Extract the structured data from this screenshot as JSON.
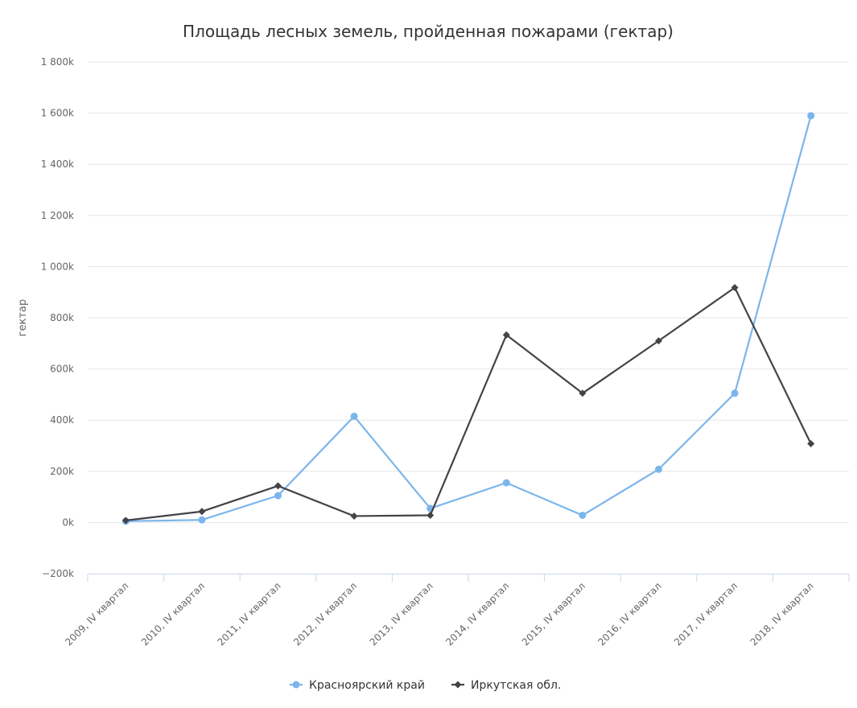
{
  "chart_data": {
    "type": "line",
    "title": "Площадь лесных земель, пройденная пожарами (гектар)",
    "xlabel": "",
    "ylabel": "гектар",
    "ylim": [
      -200000,
      1800000
    ],
    "yticks": [
      -200000,
      0,
      200000,
      400000,
      600000,
      800000,
      1000000,
      1200000,
      1400000,
      1600000,
      1800000
    ],
    "ytick_labels": [
      "−200k",
      "0k",
      "200k",
      "400k",
      "600k",
      "800k",
      "1 000k",
      "1 200k",
      "1 400k",
      "1 600k",
      "1 800k"
    ],
    "grid": true,
    "legend_position": "bottom-center",
    "categories": [
      "2009, IV квартал",
      "2010, IV квартал",
      "2011, IV квартал",
      "2012, IV квартал",
      "2013, IV квартал",
      "2014, IV квартал",
      "2015, IV квартал",
      "2016, IV квартал",
      "2017, IV квартал",
      "2018, IV квартал"
    ],
    "series": [
      {
        "name": "Красноярский край",
        "color": "#7cb5ec",
        "marker": "circle",
        "values": [
          5000,
          10000,
          105000,
          415000,
          55000,
          155000,
          28000,
          208000,
          505000,
          1590000
        ]
      },
      {
        "name": "Иркутская обл.",
        "color": "#434348",
        "marker": "diamond",
        "values": [
          8000,
          43000,
          143000,
          25000,
          28000,
          733000,
          505000,
          710000,
          918000,
          308000
        ]
      }
    ]
  }
}
